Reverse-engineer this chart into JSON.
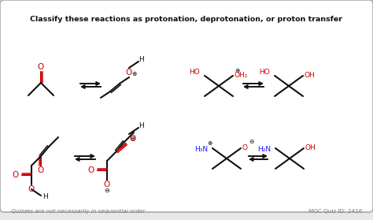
{
  "title": "Classify these reactions as protonation, deprotonation, or proton transfer",
  "footer_left": "Quizzes are not necessarily in sequential order",
  "footer_right": "MOC Quiz ID: 2416",
  "bg_color": "#e8e8e8",
  "card_color": "#ffffff",
  "border_color": "#aaaaaa",
  "title_color": "#111111",
  "red_color": "#cc0000",
  "blue_color": "#1a1aff",
  "black_color": "#111111",
  "gray_color": "#777777",
  "figw": 4.74,
  "figh": 2.79,
  "dpi": 100
}
